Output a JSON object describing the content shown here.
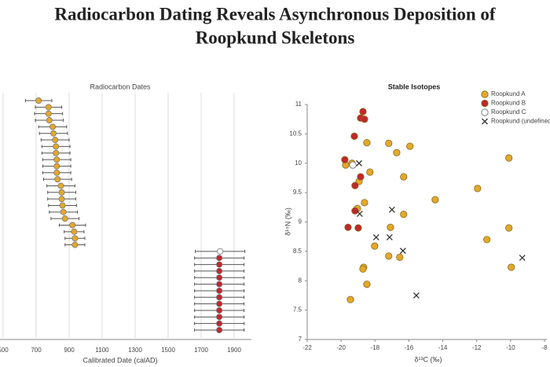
{
  "title_lines": [
    "Radiocarbon Dating Reveals Asynchronous Deposition of",
    "Roopkund Skeletons"
  ],
  "chart_data": [
    {
      "type": "errorbar",
      "title": "Radiocarbon Dates",
      "x_label": "Calibrated Date (calAD)",
      "xlim": [
        500,
        2000
      ],
      "xticks": [
        500,
        700,
        900,
        1100,
        1300,
        1500,
        1700,
        1900
      ],
      "grid": true,
      "series": [
        {
          "color": "#e3a92b",
          "values": [
            715,
            775,
            775,
            780,
            800,
            805,
            815,
            820,
            820,
            825,
            825,
            825,
            830,
            850,
            855,
            855,
            860,
            865,
            875,
            920,
            930,
            935,
            935
          ],
          "errors": [
            80,
            80,
            85,
            85,
            85,
            85,
            85,
            85,
            85,
            85,
            85,
            85,
            85,
            85,
            85,
            85,
            85,
            85,
            85,
            80,
            60,
            60,
            60
          ]
        },
        {
          "color": "#ffffff",
          "values": [
            1815
          ],
          "errors": [
            150
          ]
        },
        {
          "color": "#c1272d",
          "values": [
            1810,
            1810,
            1810,
            1810,
            1810,
            1810,
            1810,
            1810,
            1810,
            1810,
            1810,
            1810
          ],
          "errors": [
            150,
            150,
            150,
            150,
            150,
            150,
            150,
            150,
            150,
            150,
            150,
            150
          ]
        }
      ]
    },
    {
      "type": "scatter",
      "title": "Stable Isotopes",
      "x_label": "δ¹³C (‰)",
      "y_label": "δ¹⁵N (‰)",
      "xlim": [
        -22,
        -8
      ],
      "xticks": [
        -22,
        -20,
        -18,
        -16,
        -14,
        -12,
        -10,
        -8
      ],
      "ylim": [
        7,
        11
      ],
      "yticks": [
        7,
        7.5,
        8,
        8.5,
        9,
        9.5,
        10,
        10.5,
        11
      ],
      "legend": "upper right",
      "series": [
        {
          "name": "Roopkund A",
          "color": "#e3a92b",
          "marker": "circle",
          "x": [
            -18.48,
            -17.19,
            -16.72,
            -15.94,
            -19.73,
            -19.36,
            -18.3,
            -16.31,
            -18.94,
            -10.1,
            -11.95,
            -14.45,
            -18.62,
            -19.04,
            -16.31,
            -17.09,
            -10.1,
            -11.4,
            -18.02,
            -17.19,
            -16.54,
            -18.67,
            -18.71,
            -9.96,
            -18.48,
            -19.45
          ],
          "y": [
            10.35,
            10.34,
            10.18,
            10.29,
            9.97,
            10.0,
            9.85,
            9.77,
            9.69,
            10.09,
            9.57,
            9.38,
            9.33,
            9.23,
            9.13,
            8.91,
            8.9,
            8.7,
            8.59,
            8.42,
            8.4,
            8.23,
            8.2,
            8.23,
            7.94,
            7.68
          ]
        },
        {
          "name": "Roopkund B",
          "color": "#c1272d",
          "marker": "circle",
          "x": [
            -18.71,
            -18.85,
            -18.62,
            -19.22,
            -19.78,
            -18.85,
            -19.18,
            -19.18,
            -19.59,
            -18.99
          ],
          "y": [
            10.88,
            10.77,
            10.75,
            10.46,
            10.06,
            9.77,
            9.62,
            9.19,
            8.91,
            8.9
          ]
        },
        {
          "name": "Roopkund C",
          "color": "#ffffff",
          "marker": "circle",
          "x": [
            -19.31
          ],
          "y": [
            9.97
          ]
        },
        {
          "name": "Roopkund (undefined)",
          "color": "#333333",
          "marker": "x",
          "x": [
            -18.94,
            -18.9,
            -17.0,
            -17.93,
            -17.14,
            -16.35,
            -15.56,
            -9.31
          ],
          "y": [
            10.0,
            9.14,
            9.21,
            8.74,
            8.74,
            8.51,
            7.75,
            8.39
          ]
        }
      ]
    }
  ]
}
